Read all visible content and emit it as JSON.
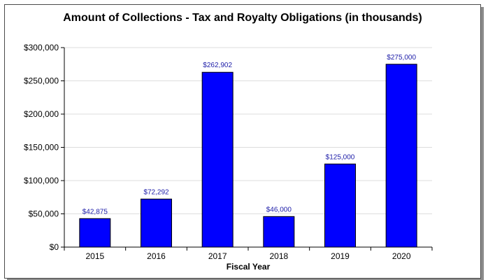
{
  "chart_data": {
    "type": "bar",
    "title": "Amount of Collections - Tax and Royalty Obligations (in thousands)",
    "xlabel": "Fiscal Year",
    "ylabel": "",
    "categories": [
      "2015",
      "2016",
      "2017",
      "2018",
      "2019",
      "2020"
    ],
    "values": [
      42875,
      72292,
      262902,
      46000,
      125000,
      275000
    ],
    "data_labels": [
      "$42,875",
      "$72,292",
      "$262,902",
      "$46,000",
      "$125,000",
      "$275,000"
    ],
    "ylim": [
      0,
      300000
    ],
    "yticks": [
      0,
      50000,
      100000,
      150000,
      200000,
      250000,
      300000
    ],
    "ytick_labels": [
      "$0",
      "$50,000",
      "$100,000",
      "$150,000",
      "$200,000",
      "$250,000",
      "$300,000"
    ],
    "grid": true,
    "legend": "none",
    "colors": {
      "bar": "#0000ff",
      "bar_edge": "#000000",
      "data_label": "#1c1ca8",
      "grid": "#dddddd"
    }
  }
}
